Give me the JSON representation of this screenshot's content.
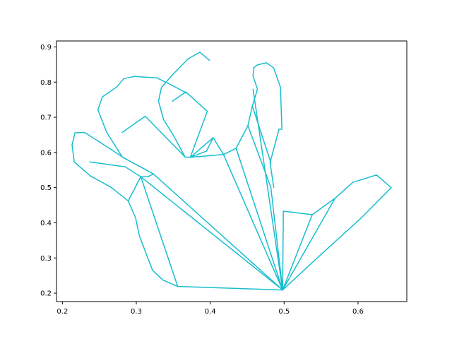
{
  "chart_data": {
    "type": "line",
    "title": "",
    "xlabel": "",
    "ylabel": "",
    "xlim": [
      0.192,
      0.666
    ],
    "ylim": [
      0.176,
      0.917
    ],
    "x_ticks": [
      0.2,
      0.3,
      0.4,
      0.5,
      0.6
    ],
    "x_tick_labels": [
      "0.2",
      "0.3",
      "0.4",
      "0.5",
      "0.6"
    ],
    "y_ticks": [
      0.2,
      0.3,
      0.4,
      0.5,
      0.6,
      0.7,
      0.8,
      0.9
    ],
    "y_tick_labels": [
      "0.2",
      "0.3",
      "0.4",
      "0.5",
      "0.6",
      "0.7",
      "0.8",
      "0.9"
    ],
    "grid": false,
    "line_color": "#17becf",
    "series": [
      {
        "x": [
          0.356,
          0.336,
          0.322,
          0.313,
          0.304,
          0.299,
          0.289
        ],
        "y": [
          0.219,
          0.237,
          0.265,
          0.314,
          0.364,
          0.414,
          0.462
        ]
      },
      {
        "x": [
          0.289,
          0.266,
          0.238,
          0.216,
          0.213,
          0.217,
          0.23,
          0.253,
          0.285
        ],
        "y": [
          0.462,
          0.501,
          0.533,
          0.573,
          0.622,
          0.656,
          0.657,
          0.626,
          0.582
        ]
      },
      {
        "x": [
          0.237,
          0.285,
          0.306,
          0.316,
          0.323
        ],
        "y": [
          0.573,
          0.559,
          0.531,
          0.531,
          0.539
        ]
      },
      {
        "x": [
          0.323,
          0.281,
          0.26,
          0.248,
          0.254,
          0.274,
          0.283,
          0.297,
          0.328,
          0.349,
          0.369
        ],
        "y": [
          0.539,
          0.587,
          0.657,
          0.721,
          0.758,
          0.787,
          0.81,
          0.816,
          0.812,
          0.79,
          0.768
        ]
      },
      {
        "x": [
          0.281,
          0.312
        ],
        "y": [
          0.657,
          0.703
        ]
      },
      {
        "x": [
          0.312,
          0.366,
          0.373,
          0.395,
          0.404
        ],
        "y": [
          0.703,
          0.587,
          0.586,
          0.604,
          0.642
        ]
      },
      {
        "x": [
          0.366,
          0.349,
          0.337,
          0.33,
          0.334,
          0.349,
          0.37,
          0.386,
          0.399
        ],
        "y": [
          0.587,
          0.653,
          0.693,
          0.746,
          0.785,
          0.821,
          0.866,
          0.885,
          0.862
        ]
      },
      {
        "x": [
          0.349,
          0.367
        ],
        "y": [
          0.746,
          0.772
        ]
      },
      {
        "x": [
          0.367,
          0.396,
          0.373,
          0.404,
          0.418,
          0.435
        ],
        "y": [
          0.772,
          0.717,
          0.586,
          0.642,
          0.594,
          0.612
        ]
      },
      {
        "x": [
          0.435,
          0.451,
          0.457,
          0.464,
          0.458,
          0.458,
          0.459,
          0.464
        ],
        "y": [
          0.612,
          0.676,
          0.732,
          0.78,
          0.817,
          0.819,
          0.841,
          0.849
        ]
      },
      {
        "x": [
          0.464,
          0.476,
          0.486,
          0.495,
          0.497,
          0.493
        ],
        "y": [
          0.849,
          0.855,
          0.84,
          0.785,
          0.666,
          0.666
        ]
      },
      {
        "x": [
          0.493,
          0.481,
          0.486
        ],
        "y": [
          0.666,
          0.571,
          0.501
        ]
      },
      {
        "x": [
          0.451,
          0.482
        ],
        "y": [
          0.676,
          0.501
        ]
      },
      {
        "x": [
          0.457,
          0.482
        ],
        "y": [
          0.732,
          0.571
        ]
      },
      {
        "x": [
          0.482,
          0.498
        ],
        "y": [
          0.501,
          0.209
        ]
      },
      {
        "x": [
          0.498,
          0.499,
          0.538,
          0.569,
          0.593,
          0.625,
          0.645,
          0.604,
          0.553,
          0.498
        ],
        "y": [
          0.209,
          0.433,
          0.423,
          0.47,
          0.515,
          0.536,
          0.5,
          0.413,
          0.316,
          0.209
        ]
      },
      {
        "x": [
          0.538,
          0.498
        ],
        "y": [
          0.423,
          0.209
        ]
      },
      {
        "x": [
          0.569,
          0.498
        ],
        "y": [
          0.47,
          0.209
        ]
      },
      {
        "x": [
          0.498,
          0.356
        ],
        "y": [
          0.209,
          0.219
        ]
      },
      {
        "x": [
          0.289,
          0.306,
          0.356
        ],
        "y": [
          0.462,
          0.531,
          0.219
        ]
      },
      {
        "x": [
          0.306,
          0.498
        ],
        "y": [
          0.531,
          0.209
        ]
      },
      {
        "x": [
          0.323,
          0.498
        ],
        "y": [
          0.539,
          0.209
        ]
      },
      {
        "x": [
          0.373,
          0.418,
          0.498
        ],
        "y": [
          0.586,
          0.594,
          0.209
        ]
      },
      {
        "x": [
          0.435,
          0.498
        ],
        "y": [
          0.612,
          0.209
        ]
      },
      {
        "x": [
          0.458,
          0.498
        ],
        "y": [
          0.78,
          0.209
        ]
      }
    ]
  }
}
